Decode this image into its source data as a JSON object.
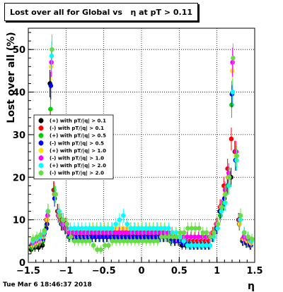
{
  "chart_data": {
    "type": "scatter",
    "title": "Lost over all for Global vs   η at pT > 0.11",
    "xlabel": "η",
    "ylabel": "Lost over all (%)",
    "xlim": [
      -1.5,
      1.5
    ],
    "ylim": [
      0,
      55
    ],
    "xticks": [
      -1.5,
      -1,
      -0.5,
      0,
      0.5,
      1,
      1.5
    ],
    "xtick_labels": [
      "−1.5",
      "−1",
      "−0.5",
      "0",
      "0.5",
      "1",
      "1.5"
    ],
    "yticks": [
      0,
      10,
      20,
      30,
      40,
      50
    ],
    "ytick_labels": [
      "0",
      "10",
      "20",
      "30",
      "40",
      "50"
    ],
    "grid": true,
    "legend_position": "left-middle",
    "bins": [
      -1.45,
      -1.4,
      -1.35,
      -1.3,
      -1.25,
      -1.2,
      -1.15,
      -1.1,
      -1.05,
      -1.0,
      -0.95,
      -0.9,
      -0.85,
      -0.8,
      -0.75,
      -0.7,
      -0.65,
      -0.6,
      -0.55,
      -0.5,
      -0.45,
      -0.4,
      -0.35,
      -0.3,
      -0.25,
      -0.2,
      -0.15,
      -0.1,
      -0.05,
      0.0,
      0.05,
      0.1,
      0.15,
      0.2,
      0.25,
      0.3,
      0.35,
      0.4,
      0.45,
      0.5,
      0.55,
      0.6,
      0.65,
      0.7,
      0.75,
      0.8,
      0.85,
      0.9,
      0.95,
      1.0,
      1.05,
      1.1,
      1.15,
      1.2,
      1.25,
      1.3,
      1.35,
      1.4,
      1.45
    ],
    "series": [
      {
        "name": "(+) with pT/|q| > 0.1",
        "color": "#000000",
        "values": [
          3,
          3.5,
          3.5,
          4,
          8,
          42,
          17,
          12,
          9,
          8,
          6,
          6,
          6,
          6,
          6,
          6,
          6,
          6,
          6,
          6,
          6,
          6,
          6,
          6,
          6,
          6,
          6,
          6,
          6,
          6,
          6,
          6,
          6,
          6,
          6,
          6,
          6,
          5,
          5,
          5,
          4,
          4,
          4,
          4,
          4,
          4,
          4,
          4,
          6,
          8,
          12,
          14,
          18,
          20,
          26,
          10,
          5,
          4.5,
          4
        ]
      },
      {
        "name": "(-) with pT/|q| > 0.1",
        "color": "#ff0000",
        "values": [
          4,
          4.5,
          5,
          6,
          10,
          33,
          17,
          12,
          10,
          9,
          7,
          7,
          7,
          7,
          7,
          7,
          7,
          7,
          7,
          7,
          7,
          7,
          7,
          7,
          7,
          7,
          7,
          7,
          7,
          7,
          7,
          7,
          7,
          7,
          7,
          7,
          6,
          6,
          6,
          5,
          5,
          5,
          5,
          5,
          5,
          5,
          5,
          5,
          7,
          9,
          13,
          18,
          22,
          29,
          26,
          10,
          5.5,
          5,
          4.5
        ]
      },
      {
        "name": "(+) with pT/|q| > 0.5",
        "color": "#00d000",
        "values": [
          3.5,
          4,
          4.5,
          5,
          9,
          36,
          16,
          11,
          9,
          8,
          6,
          6,
          6,
          6,
          6,
          6,
          6,
          6,
          6,
          6,
          6,
          6,
          6,
          6,
          6,
          6,
          6,
          6,
          6,
          6,
          6,
          6,
          6,
          6,
          6,
          6,
          6,
          5,
          5,
          5,
          5,
          5,
          4,
          4,
          4,
          4,
          4,
          4,
          6,
          8,
          11,
          14,
          18,
          37,
          24,
          9,
          5,
          4.5,
          4
        ]
      },
      {
        "name": "(-) with pT/|q| > 0.5",
        "color": "#0000ff",
        "values": [
          4,
          4.5,
          5,
          5.5,
          9,
          41.5,
          15,
          11,
          9,
          8,
          6.5,
          6,
          6,
          6,
          6,
          6,
          6,
          6,
          6,
          6,
          6,
          6,
          6,
          6,
          6,
          6,
          6,
          6,
          6,
          6,
          6,
          6,
          6,
          6,
          6,
          6,
          6,
          5.5,
          5,
          5,
          4.5,
          4.5,
          4,
          4,
          4,
          4,
          4,
          4,
          6,
          8,
          12,
          15,
          20,
          39.5,
          24,
          9,
          5,
          4.5,
          4
        ]
      },
      {
        "name": "(+) with pT/|q| > 1.0",
        "color": "#ffe000",
        "values": [
          4,
          4.5,
          5,
          6,
          10,
          46,
          16,
          11,
          9,
          8,
          7,
          7,
          7,
          7,
          7,
          7,
          8,
          8,
          8,
          8,
          8,
          8,
          8,
          8,
          8,
          8,
          8,
          8,
          8,
          8,
          8,
          8,
          8,
          8,
          8,
          8,
          7,
          7,
          7,
          6,
          6,
          6,
          6,
          6,
          6,
          6,
          6,
          6,
          7,
          9,
          13,
          16,
          20,
          45,
          25,
          9,
          5.5,
          5,
          4.5
        ]
      },
      {
        "name": "(-) with pT/|q| > 1.0",
        "color": "#ff00ff",
        "values": [
          4.5,
          5,
          5.5,
          6.5,
          11,
          47,
          16,
          11,
          9,
          8,
          7,
          7,
          7,
          7,
          7,
          7,
          7,
          7,
          7,
          7,
          7,
          7,
          7,
          7,
          7,
          7,
          7,
          7,
          7,
          7,
          7,
          7,
          7,
          7,
          7,
          7,
          7,
          7,
          6,
          6,
          6,
          6,
          6,
          6,
          6,
          6,
          6,
          6,
          7,
          9,
          13,
          17,
          21,
          47,
          26,
          10,
          6,
          5.5,
          5
        ]
      },
      {
        "name": "(+) with pT/|q| > 2.0",
        "color": "#00ffff",
        "values": [
          5,
          5.5,
          6,
          7,
          12,
          48.5,
          16,
          12,
          10,
          9,
          8,
          8,
          8,
          8,
          8,
          8,
          8,
          8,
          8,
          8,
          8,
          8,
          9,
          10,
          11,
          9,
          8,
          8,
          8,
          8,
          8,
          8,
          8,
          8,
          8,
          8,
          8,
          7,
          7,
          6,
          5,
          4,
          4,
          4,
          4,
          4,
          4,
          4,
          6,
          8,
          12,
          14,
          18,
          40,
          24,
          10,
          7,
          6,
          5
        ]
      },
      {
        "name": "(-) with pT/|q| > 2.0",
        "color": "#66dd44",
        "values": [
          5.5,
          6,
          6.5,
          7.5,
          12,
          50,
          16,
          11,
          10,
          9,
          6,
          5,
          5,
          5,
          5,
          5,
          4,
          3,
          3,
          4,
          4,
          5,
          5,
          5,
          5,
          5,
          5,
          5,
          5,
          5,
          5,
          5,
          5,
          5,
          6,
          6,
          6,
          6,
          6,
          7,
          7,
          8,
          8,
          8,
          8,
          7,
          7,
          6,
          7,
          9,
          13,
          16,
          20,
          48,
          25,
          11,
          7,
          6,
          5.5
        ]
      }
    ]
  },
  "timestamp": "Tue Mar  6 18:46:37 2018"
}
